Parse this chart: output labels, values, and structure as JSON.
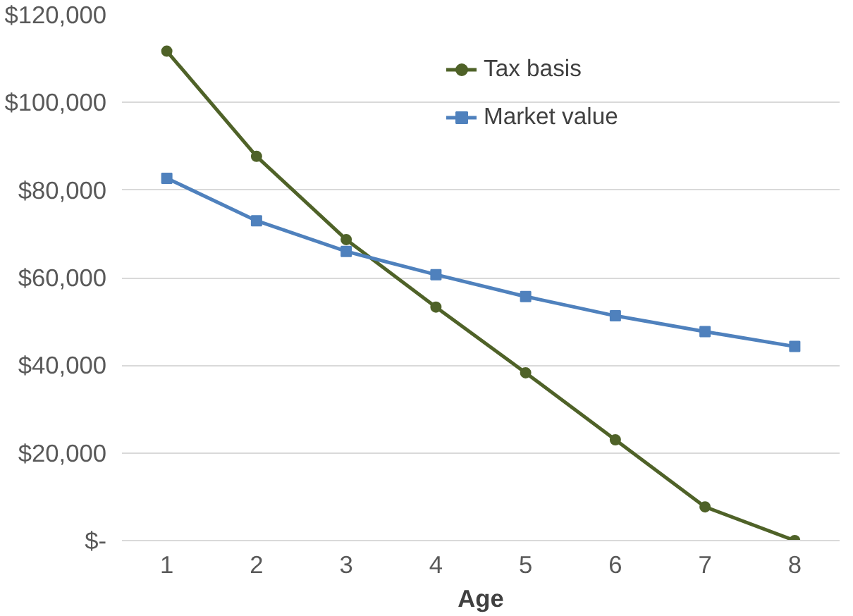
{
  "chart_data": {
    "type": "line",
    "xlabel": "Age",
    "x": [
      1,
      2,
      3,
      4,
      5,
      6,
      7,
      8
    ],
    "series": [
      {
        "name": "Tax basis",
        "color": "#4f6228",
        "marker": "circle",
        "values": [
          111700,
          87700,
          68700,
          53300,
          38300,
          23000,
          7700,
          0
        ]
      },
      {
        "name": "Market value",
        "color": "#4f81bd",
        "marker": "square",
        "values": [
          82700,
          73000,
          66000,
          60700,
          55700,
          51300,
          47700,
          44300
        ]
      }
    ],
    "xlim": [
      0.5,
      8.5
    ],
    "xticks": [
      1,
      2,
      3,
      4,
      5,
      6,
      7,
      8
    ],
    "ylim": [
      0,
      120000
    ],
    "yticks": [
      {
        "value": 0,
        "label": "$-"
      },
      {
        "value": 20000,
        "label": "$20,000"
      },
      {
        "value": 40000,
        "label": "$40,000"
      },
      {
        "value": 60000,
        "label": "$60,000"
      },
      {
        "value": 80000,
        "label": "$80,000"
      },
      {
        "value": 100000,
        "label": "$100,000"
      },
      {
        "value": 120000,
        "label": "$120,000"
      }
    ],
    "grid": "y",
    "legend": "top right",
    "line_style": "solid"
  }
}
